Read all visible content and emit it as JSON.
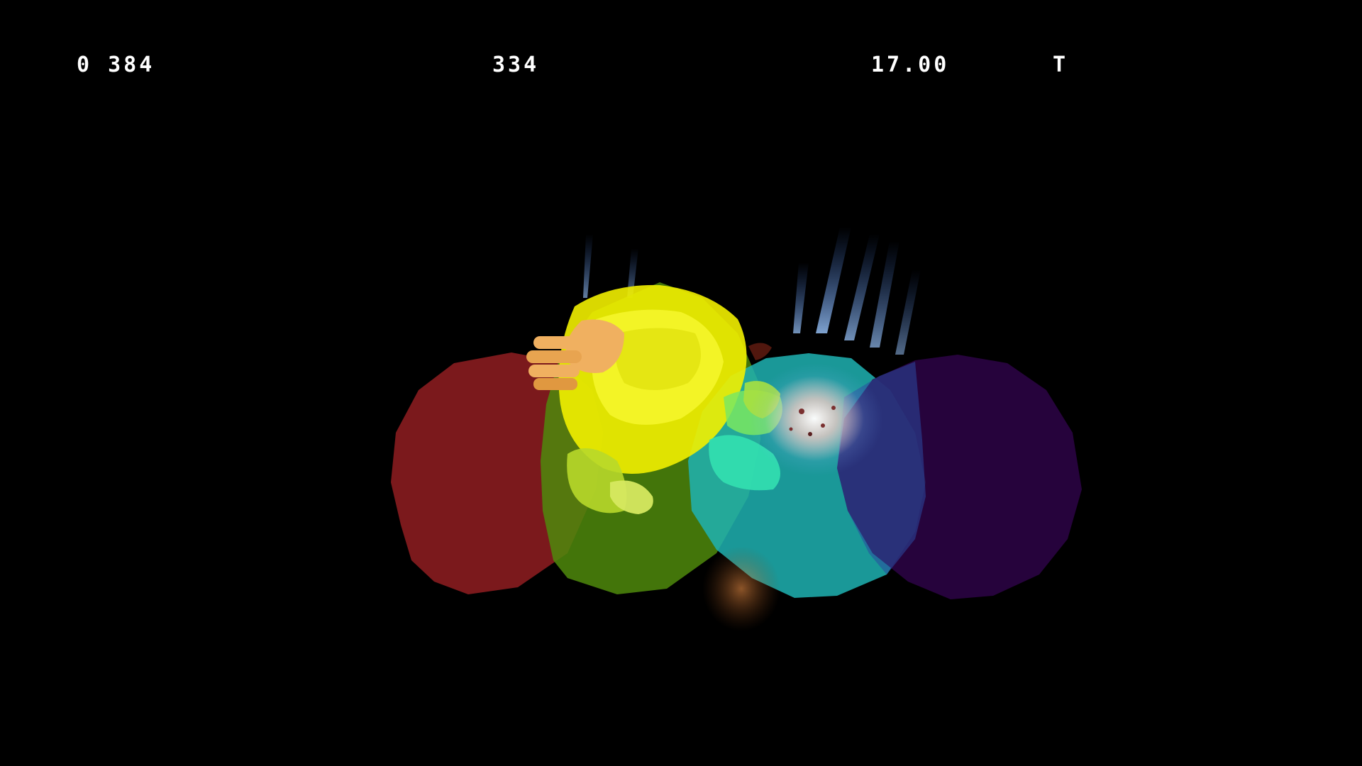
{
  "hud": {
    "left_readout": "0 384",
    "center_readout": "334",
    "timer": "17.00",
    "right_marker": "T"
  },
  "colors": {
    "background": "#000000",
    "hud_text": "#ffffff",
    "hitbox_red": "#7d1a1d",
    "hitbox_green": "#4f8a0c",
    "hitbox_cyan": "#1fb3b3",
    "hitbox_purple": "#2a0342",
    "character_yellow": "#f2f000",
    "character_hand": "#f0b060",
    "impact_spark": "#e8c8c0",
    "energy_streak": "#6aa8ff"
  },
  "scene": {
    "hitboxes": [
      "hitbox-red",
      "hitbox-green",
      "hitbox-cyan",
      "hitbox-purple"
    ],
    "character": "yellow-character-model",
    "effects": [
      "impact-spark",
      "energy-streaks"
    ]
  }
}
